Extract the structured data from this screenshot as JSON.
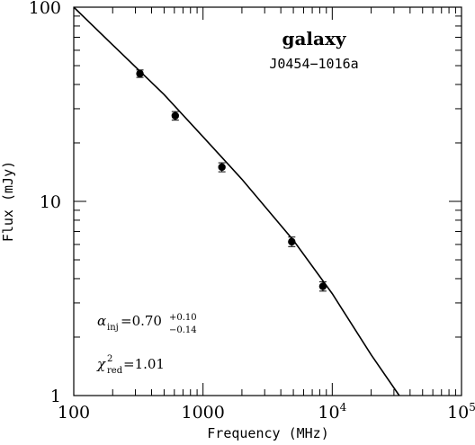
{
  "chart_data": {
    "type": "scatter",
    "title": "galaxy",
    "subtitle": "J0454−1016a",
    "xlabel": "Frequency (MHz)",
    "ylabel": "Flux (mJy)",
    "xscale": "log",
    "yscale": "log",
    "xlim": [
      100,
      100000
    ],
    "ylim": [
      1,
      100
    ],
    "x_tick_labels": [
      "100",
      "1000",
      "10",
      "10"
    ],
    "x_tick_label_exponents": [
      "",
      "",
      "4",
      "5"
    ],
    "y_tick_labels": [
      "1",
      "10",
      "100"
    ],
    "grid": false,
    "series": [
      {
        "points": [
          {
            "x": 325,
            "y": 45.5,
            "err": 2.0
          },
          {
            "x": 610,
            "y": 27.6,
            "err": 1.4
          },
          {
            "x": 1400,
            "y": 15.0,
            "err": 0.8
          },
          {
            "x": 4860,
            "y": 6.2,
            "err": 0.35
          },
          {
            "x": 8460,
            "y": 3.65,
            "err": 0.2
          }
        ]
      }
    ],
    "model_curve": [
      {
        "x": 100,
        "y": 100
      },
      {
        "x": 200,
        "y": 64
      },
      {
        "x": 500,
        "y": 35.5
      },
      {
        "x": 1000,
        "y": 21.5
      },
      {
        "x": 2000,
        "y": 13
      },
      {
        "x": 5000,
        "y": 6.3
      },
      {
        "x": 10000,
        "y": 3.35
      },
      {
        "x": 20000,
        "y": 1.62
      },
      {
        "x": 33000,
        "y": 1.0
      }
    ],
    "annotations": {
      "alpha_symbol": "α",
      "alpha_sub": "inj",
      "alpha_value": "=0.70",
      "alpha_sup": "+0.10",
      "alpha_sub2": "−0.14",
      "chi_symbol": "χ",
      "chi_sup": "2",
      "chi_sub": "red",
      "chi_value": "=1.01"
    }
  }
}
